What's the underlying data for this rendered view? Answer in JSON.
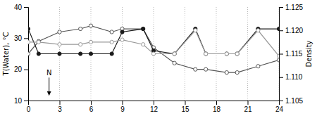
{
  "chart_data": {
    "type": "line",
    "y_label": "T(Water), °C",
    "y2_label": "Density",
    "x": [
      0,
      1,
      3,
      5,
      6,
      8,
      9,
      11,
      12,
      14,
      16,
      17,
      19,
      20,
      22,
      24
    ],
    "series": [
      {
        "color": "#555555",
        "marker": "open-circle",
        "values": [
          25,
          29,
          32,
          33,
          34,
          32,
          33,
          33,
          27,
          22,
          20,
          20,
          19,
          19,
          21,
          23
        ]
      },
      {
        "color": "#1a1a1a",
        "marker": "circle",
        "values": [
          33,
          25,
          25,
          25,
          25,
          25,
          32,
          33,
          26,
          25,
          33,
          25,
          25,
          25,
          33,
          33
        ]
      },
      {
        "color": "#999999",
        "marker": "open-circle",
        "axis": "y2",
        "values": [
          1.1175,
          1.1175,
          1.117,
          1.117,
          1.1175,
          1.1175,
          1.118,
          1.117,
          1.115,
          1.115,
          1.12,
          1.115,
          1.115,
          1.115,
          1.12,
          1.1145
        ]
      }
    ],
    "xlim": [
      0,
      24
    ],
    "xticks": [
      0,
      3,
      6,
      9,
      12,
      15,
      18,
      21,
      24
    ],
    "ylim": [
      10,
      40
    ],
    "yticks": [
      10,
      20,
      30,
      40
    ],
    "y2lim": [
      1.105,
      1.125
    ],
    "y2ticks": [
      1.105,
      {
        "value": 1.11,
        "label": "1.110"
      },
      1.115,
      {
        "value": 1.12,
        "label": "1.120"
      },
      1.125
    ],
    "grid": "x",
    "annotations": [
      {
        "text": "N",
        "x": 2,
        "y": 11.5
      }
    ]
  }
}
